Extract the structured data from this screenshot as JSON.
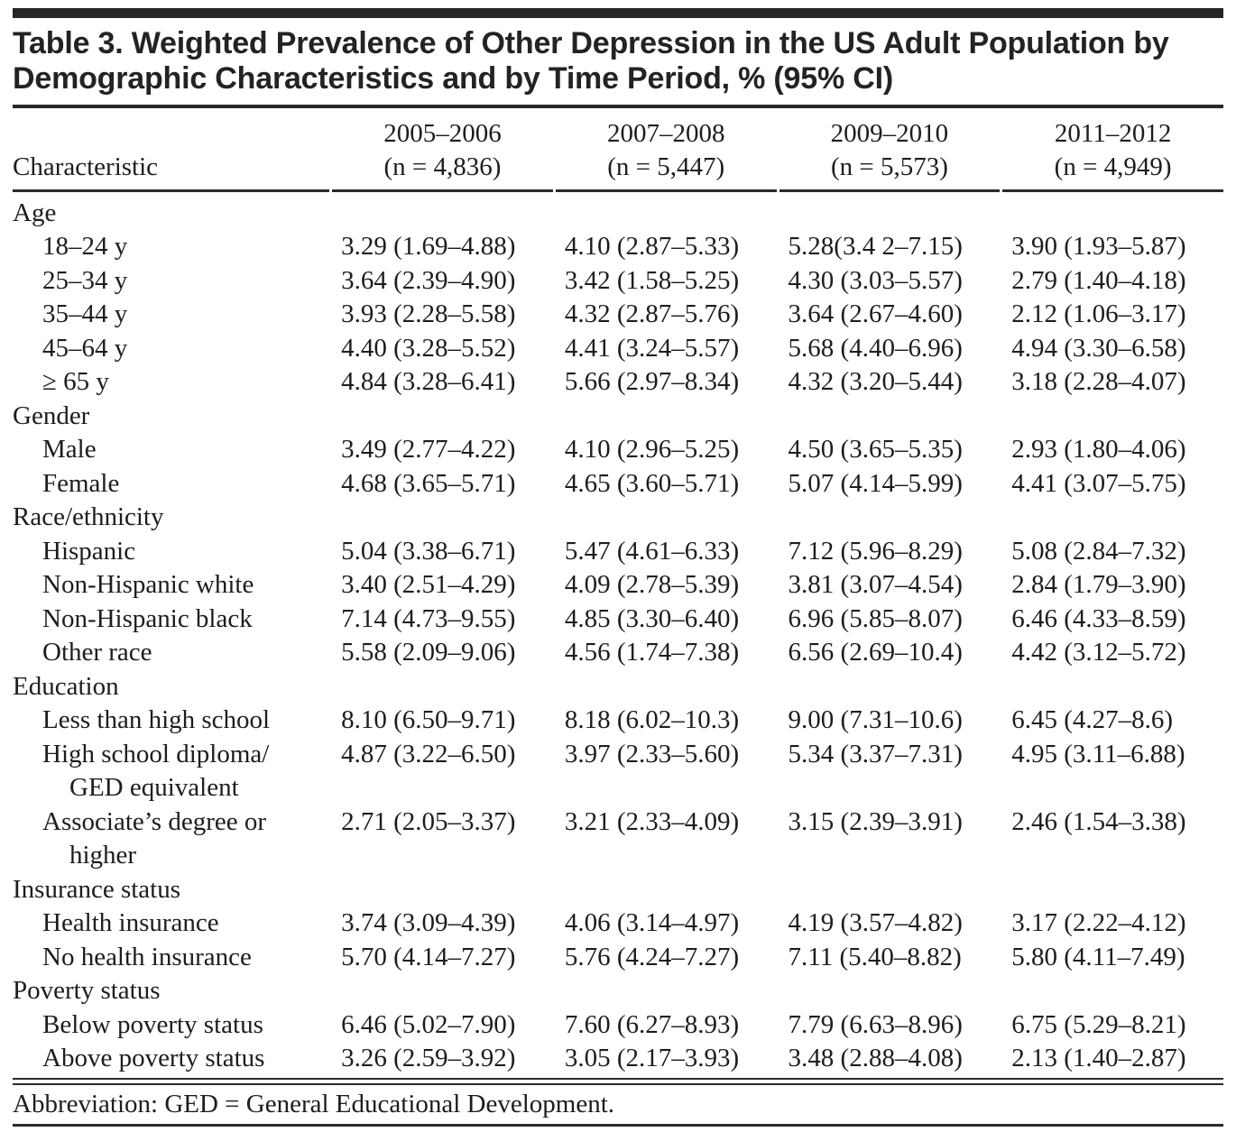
{
  "page": {
    "title": "Table 3. Weighted Prevalence of Other Depression in the US Adult Population by Demographic Characteristics and by Time Period, % (95% CI)",
    "characteristic_header": "Characteristic",
    "columns": [
      {
        "period": "2005–2006",
        "n": "(n = 4,836)"
      },
      {
        "period": "2007–2008",
        "n": "(n = 5,447)"
      },
      {
        "period": "2009–2010",
        "n": "(n = 5,573)"
      },
      {
        "period": "2011–2012",
        "n": "(n = 4,949)"
      }
    ],
    "sections": [
      {
        "label": "Age",
        "rows": [
          {
            "label": "18–24 y",
            "values": [
              "3.29 (1.69–4.88)",
              "4.10 (2.87–5.33)",
              "5.28(3.4 2–7.15)",
              "3.90 (1.93–5.87)"
            ]
          },
          {
            "label": "25–34 y",
            "values": [
              "3.64 (2.39–4.90)",
              "3.42 (1.58–5.25)",
              "4.30 (3.03–5.57)",
              "2.79 (1.40–4.18)"
            ]
          },
          {
            "label": "35–44 y",
            "values": [
              "3.93 (2.28–5.58)",
              "4.32 (2.87–5.76)",
              "3.64 (2.67–4.60)",
              "2.12 (1.06–3.17)"
            ]
          },
          {
            "label": "45–64 y",
            "values": [
              "4.40 (3.28–5.52)",
              "4.41 (3.24–5.57)",
              "5.68 (4.40–6.96)",
              "4.94 (3.30–6.58)"
            ]
          },
          {
            "label": "≥ 65 y",
            "values": [
              "4.84 (3.28–6.41)",
              "5.66 (2.97–8.34)",
              "4.32 (3.20–5.44)",
              "3.18 (2.28–4.07)"
            ]
          }
        ]
      },
      {
        "label": "Gender",
        "rows": [
          {
            "label": "Male",
            "values": [
              "3.49 (2.77–4.22)",
              "4.10 (2.96–5.25)",
              "4.50 (3.65–5.35)",
              "2.93 (1.80–4.06)"
            ]
          },
          {
            "label": "Female",
            "values": [
              "4.68 (3.65–5.71)",
              "4.65 (3.60–5.71)",
              "5.07 (4.14–5.99)",
              "4.41 (3.07–5.75)"
            ]
          }
        ]
      },
      {
        "label": "Race/ethnicity",
        "rows": [
          {
            "label": "Hispanic",
            "values": [
              "5.04 (3.38–6.71)",
              "5.47 (4.61–6.33)",
              "7.12 (5.96–8.29)",
              "5.08 (2.84–7.32)"
            ]
          },
          {
            "label": "Non-Hispanic white",
            "values": [
              "3.40 (2.51–4.29)",
              "4.09 (2.78–5.39)",
              "3.81 (3.07–4.54)",
              "2.84 (1.79–3.90)"
            ]
          },
          {
            "label": "Non-Hispanic black",
            "values": [
              "7.14 (4.73–9.55)",
              "4.85 (3.30–6.40)",
              "6.96 (5.85–8.07)",
              "6.46 (4.33–8.59)"
            ]
          },
          {
            "label": "Other race",
            "values": [
              "5.58 (2.09–9.06)",
              "4.56 (1.74–7.38)",
              "6.56 (2.69–10.4)",
              "4.42 (3.12–5.72)"
            ]
          }
        ]
      },
      {
        "label": "Education",
        "rows": [
          {
            "label": "Less than high school",
            "values": [
              "8.10 (6.50–9.71)",
              "8.18 (6.02–10.3)",
              "9.00 (7.31–10.6)",
              "6.45 (4.27–8.6)"
            ]
          },
          {
            "label": "High school diploma/",
            "label2": "GED equivalent",
            "values": [
              "4.87 (3.22–6.50)",
              "3.97 (2.33–5.60)",
              "5.34 (3.37–7.31)",
              "4.95 (3.11–6.88)"
            ]
          },
          {
            "label": "Associate’s degree or",
            "label2": "higher",
            "values": [
              "2.71 (2.05–3.37)",
              "3.21 (2.33–4.09)",
              "3.15 (2.39–3.91)",
              "2.46 (1.54–3.38)"
            ]
          }
        ]
      },
      {
        "label": "Insurance status",
        "rows": [
          {
            "label": "Health insurance",
            "values": [
              "3.74 (3.09–4.39)",
              "4.06 (3.14–4.97)",
              "4.19 (3.57–4.82)",
              "3.17 (2.22–4.12)"
            ]
          },
          {
            "label": "No health insurance",
            "values": [
              "5.70 (4.14–7.27)",
              "5.76 (4.24–7.27)",
              "7.11 (5.40–8.82)",
              "5.80 (4.11–7.49)"
            ]
          }
        ]
      },
      {
        "label": "Poverty status",
        "rows": [
          {
            "label": "Below poverty status",
            "values": [
              "6.46 (5.02–7.90)",
              "7.60 (6.27–8.93)",
              "7.79 (6.63–8.96)",
              "6.75 (5.29–8.21)"
            ]
          },
          {
            "label": "Above poverty status",
            "values": [
              "3.26 (2.59–3.92)",
              "3.05 (2.17–3.93)",
              "3.48 (2.88–4.08)",
              "2.13 (1.40–2.87)"
            ]
          }
        ]
      }
    ],
    "footnote": "Abbreviation: GED = General Educational Development.",
    "colors": {
      "text": "#1e1c1c",
      "rule": "#2b2929",
      "background": "#ffffff"
    }
  }
}
